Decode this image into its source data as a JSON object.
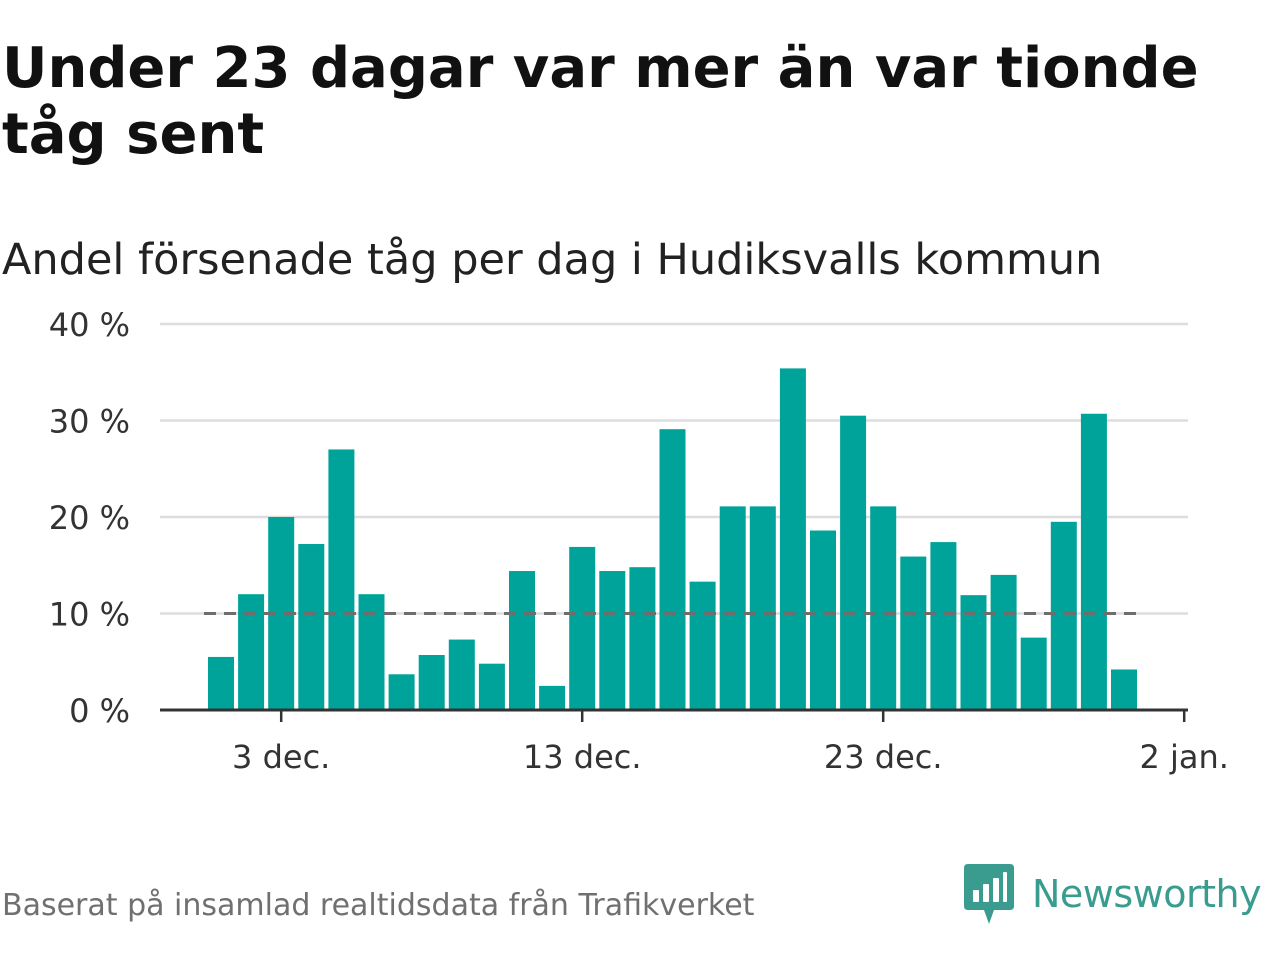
{
  "header": {
    "title": "Under 23 dagar var mer än var tionde tåg sent",
    "subtitle": "Andel försenade tåg per dag i Hudiksvalls kommun"
  },
  "footer": {
    "source": "Baserat på insamlad realtidsdata från Trafikverket",
    "brand": "Newsworthy",
    "logo_icon": "newsworthy-logo-icon"
  },
  "colors": {
    "bar": "#00a39a",
    "reference_line": "#6e6e6e",
    "grid": "#dddddd",
    "axis": "#333333",
    "brand": "#3a9c8f"
  },
  "chart_data": {
    "type": "bar",
    "x": [
      "2023-12-01",
      "2023-12-02",
      "2023-12-03",
      "2023-12-04",
      "2023-12-05",
      "2023-12-06",
      "2023-12-07",
      "2023-12-08",
      "2023-12-09",
      "2023-12-10",
      "2023-12-11",
      "2023-12-12",
      "2023-12-13",
      "2023-12-14",
      "2023-12-15",
      "2023-12-16",
      "2023-12-17",
      "2023-12-18",
      "2023-12-19",
      "2023-12-20",
      "2023-12-21",
      "2023-12-22",
      "2023-12-23",
      "2023-12-24",
      "2023-12-25",
      "2023-12-26",
      "2023-12-27",
      "2023-12-28",
      "2023-12-29",
      "2023-12-30",
      "2023-12-31"
    ],
    "values": [
      5.5,
      12,
      20,
      17.2,
      27,
      12,
      3.7,
      5.7,
      7.3,
      4.8,
      14.4,
      2.5,
      16.9,
      14.4,
      14.8,
      29.1,
      13.3,
      21.1,
      21.1,
      35.4,
      18.6,
      30.5,
      21.1,
      15.9,
      17.4,
      11.9,
      14,
      7.5,
      19.5,
      30.7,
      4.2
    ],
    "ylim": [
      0,
      40
    ],
    "yticks": [
      0,
      10,
      20,
      30,
      40
    ],
    "ytick_labels": [
      "0 %",
      "10 %",
      "20 %",
      "30 %",
      "40 %"
    ],
    "xticks": [
      "2023-12-03",
      "2023-12-13",
      "2023-12-23",
      "2024-01-02"
    ],
    "xtick_labels": [
      "3 dec.",
      "13 dec.",
      "23 dec.",
      "2 jan."
    ],
    "reference_line": {
      "value": 10,
      "style": "dashed"
    },
    "grid": true,
    "legend": false
  }
}
